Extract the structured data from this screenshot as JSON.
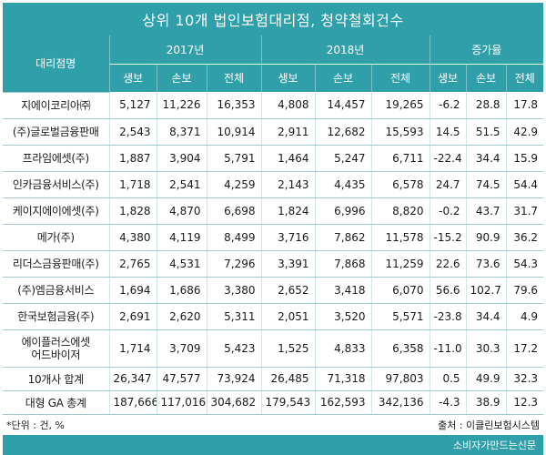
{
  "title": "상위 10개 법인보험대리점, 청약철회건수",
  "header": {
    "corner": "대리점명",
    "year1": "2017년",
    "year2": "2018년",
    "change": "증가율",
    "sub": [
      "생보",
      "손보",
      "전체",
      "생보",
      "손보",
      "전체",
      "생보",
      "손보",
      "전체"
    ]
  },
  "rows": [
    {
      "name": "지에이코리아㈜",
      "v": [
        "5,127",
        "11,226",
        "16,353",
        "4,808",
        "14,457",
        "19,265",
        "-6.2",
        "28.8",
        "17.8"
      ]
    },
    {
      "name": "(주)글로벌금융판매",
      "v": [
        "2,543",
        "8,371",
        "10,914",
        "2,911",
        "12,682",
        "15,593",
        "14.5",
        "51.5",
        "42.9"
      ]
    },
    {
      "name": "프라임에셋(주)",
      "v": [
        "1,887",
        "3,904",
        "5,791",
        "1,464",
        "5,247",
        "6,711",
        "-22.4",
        "34.4",
        "15.9"
      ]
    },
    {
      "name": "인카금융서비스(주)",
      "v": [
        "1,718",
        "2,541",
        "4,259",
        "2,143",
        "4,435",
        "6,578",
        "24.7",
        "74.5",
        "54.4"
      ]
    },
    {
      "name": "케이지에이에셋(주)",
      "v": [
        "1,828",
        "4,870",
        "6,698",
        "1,824",
        "6,996",
        "8,820",
        "-0.2",
        "43.7",
        "31.7"
      ]
    },
    {
      "name": "메가(주)",
      "v": [
        "4,380",
        "4,119",
        "8,499",
        "3,716",
        "7,862",
        "11,578",
        "-15.2",
        "90.9",
        "36.2"
      ]
    },
    {
      "name": "리더스금융판매(주)",
      "v": [
        "2,765",
        "4,531",
        "7,296",
        "3,391",
        "7,868",
        "11,259",
        "22.6",
        "73.6",
        "54.3"
      ]
    },
    {
      "name": "(주)엠금융서비스",
      "v": [
        "1,694",
        "1,686",
        "3,380",
        "2,652",
        "3,418",
        "6,070",
        "56.6",
        "102.7",
        "79.6"
      ]
    },
    {
      "name": "한국보험금융(주)",
      "v": [
        "2,691",
        "2,620",
        "5,311",
        "2,051",
        "3,520",
        "5,571",
        "-23.8",
        "34.4",
        "4.9"
      ]
    },
    {
      "name_line1": "에이플러스에셋",
      "name_line2": "어드바이저",
      "v": [
        "1,714",
        "3,709",
        "5,423",
        "1,525",
        "4,833",
        "6,358",
        "-11.0",
        "30.3",
        "17.2"
      ]
    }
  ],
  "total": {
    "name": "10개사 합계",
    "v": [
      "26,347",
      "47,577",
      "73,924",
      "26,485",
      "71,318",
      "97,803",
      "0.5",
      "49.9",
      "32.3"
    ]
  },
  "ga_total": {
    "name": "대형 GA 총계",
    "v": [
      "187,666",
      "117,016",
      "304,682",
      "179,543",
      "162,593",
      "342,136",
      "-4.3",
      "38.9",
      "12.3"
    ]
  },
  "footnote": "*단위 : 건, %",
  "source": "출처 : 이클린보험시스템",
  "brand": "소비자가만드는신문",
  "colors": {
    "accent": "#2f9faa"
  }
}
